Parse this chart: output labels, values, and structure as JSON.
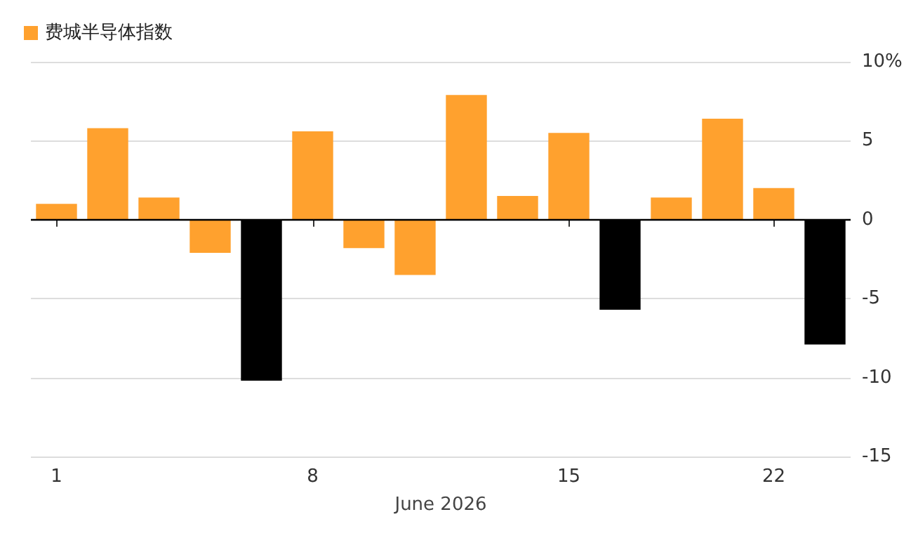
{
  "chart_data": {
    "type": "bar",
    "xlabel": "June 2026",
    "categories": [
      "1",
      null,
      null,
      null,
      null,
      "8",
      null,
      null,
      null,
      null,
      "15",
      null,
      null,
      null,
      "22",
      null
    ],
    "series": [
      {
        "name": "费城半导体指数",
        "color": "#ffa12e",
        "values": [
          1.0,
          5.8,
          1.4,
          -2.1,
          -10.2,
          5.6,
          -1.8,
          -3.5,
          7.9,
          1.5,
          5.5,
          -5.7,
          1.4,
          6.4,
          2.0,
          -7.9
        ],
        "colors": [
          "#ffa12e",
          "#ffa12e",
          "#ffa12e",
          "#ffa12e",
          "#000000",
          "#ffa12e",
          "#ffa12e",
          "#ffa12e",
          "#ffa12e",
          "#ffa12e",
          "#ffa12e",
          "#000000",
          "#ffa12e",
          "#ffa12e",
          "#ffa12e",
          "#000000"
        ]
      }
    ],
    "ylim": [
      -15,
      10
    ],
    "yticks": [
      {
        "value": 10,
        "label": "10%"
      },
      5,
      0,
      -5,
      -10,
      -15
    ],
    "grid": "y",
    "legend": "top left"
  }
}
